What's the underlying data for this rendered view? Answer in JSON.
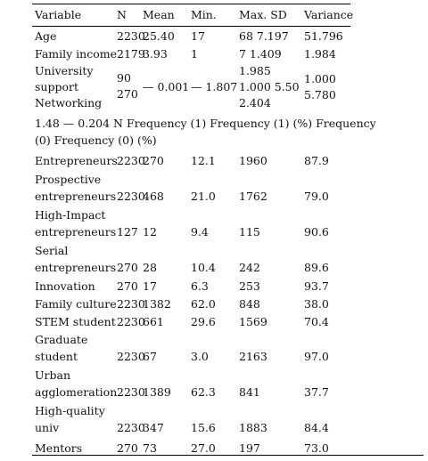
{
  "header": {
    "variable": "Variable",
    "n": "N",
    "mean": "Mean",
    "min": "Min.",
    "max_sd": "Max. SD",
    "variance": "Variance"
  },
  "rows_top": [
    {
      "variable": "Age",
      "n": "2230",
      "mean": "25.40",
      "min": "17",
      "max_sd": "68 7.197",
      "variance": "51.796"
    },
    {
      "variable": "Family income",
      "n": "2179",
      "mean": "3.93",
      "min": "1",
      "max_sd": "7 1.409",
      "variance": "1.984"
    }
  ],
  "row_university": {
    "variable_lines": [
      "University",
      "support",
      "Networking"
    ],
    "n_lines": [
      "90",
      "270"
    ],
    "mean": "— 0.001",
    "min": "— 1.807",
    "max_sd_lines": [
      "1.985",
      "1.000 5.50",
      "2.404"
    ],
    "variance_lines": [
      "1.000",
      "5.780"
    ]
  },
  "section_header_lines": [
    "1.48 — 0.204 N Frequency (1) Frequency (1) (%) Frequency",
    "(0) Frequency (0) (%)"
  ],
  "rows_bottom": [
    {
      "variable_lines": [
        "Entrepreneurs"
      ],
      "n": "2230",
      "freq1": "270",
      "pct1": "12.1",
      "freq0": "1960",
      "pct0": "87.9"
    },
    {
      "variable_lines": [
        "Prospective",
        "entrepreneurs"
      ],
      "n": "2230",
      "freq1": "468",
      "pct1": "21.0",
      "freq0": "1762",
      "pct0": "79.0"
    },
    {
      "variable_lines": [
        "High-Impact",
        "entrepreneurs"
      ],
      "n": "127",
      "freq1": "12",
      "pct1": "9.4",
      "freq0": "115",
      "pct0": "90.6"
    },
    {
      "variable_lines": [
        "Serial",
        "entrepreneurs"
      ],
      "n": "270",
      "freq1": "28",
      "pct1": "10.4",
      "freq0": "242",
      "pct0": "89.6"
    },
    {
      "variable_lines": [
        "Innovation"
      ],
      "n": "270",
      "freq1": "17",
      "pct1": "6.3",
      "freq0": "253",
      "pct0": "93.7"
    },
    {
      "variable_lines": [
        "Family culture"
      ],
      "n": "2230",
      "freq1": "1382",
      "pct1": "62.0",
      "freq0": "848",
      "pct0": "38.0"
    },
    {
      "variable_lines": [
        "STEM student"
      ],
      "n": "2230",
      "freq1": "661",
      "pct1": "29.6",
      "freq0": "1569",
      "pct0": "70.4"
    },
    {
      "variable_lines": [
        "Graduate",
        "student"
      ],
      "n": "2230",
      "freq1": "67",
      "pct1": "3.0",
      "freq0": "2163",
      "pct0": "97.0"
    },
    {
      "variable_lines": [
        "Urban",
        "agglomeration"
      ],
      "n": "2230",
      "freq1": "1389",
      "pct1": "62.3",
      "freq0": "841",
      "pct0": "37.7"
    },
    {
      "variable_lines": [
        "High-quality",
        "univ"
      ],
      "n": "2230",
      "freq1": "347",
      "pct1": "15.6",
      "freq0": "1883",
      "pct0": "84.4"
    },
    {
      "variable_lines": [
        "Mentors"
      ],
      "n": "270",
      "freq1": "73",
      "pct1": "27.0",
      "freq0": "197",
      "pct0": "73.0"
    }
  ]
}
